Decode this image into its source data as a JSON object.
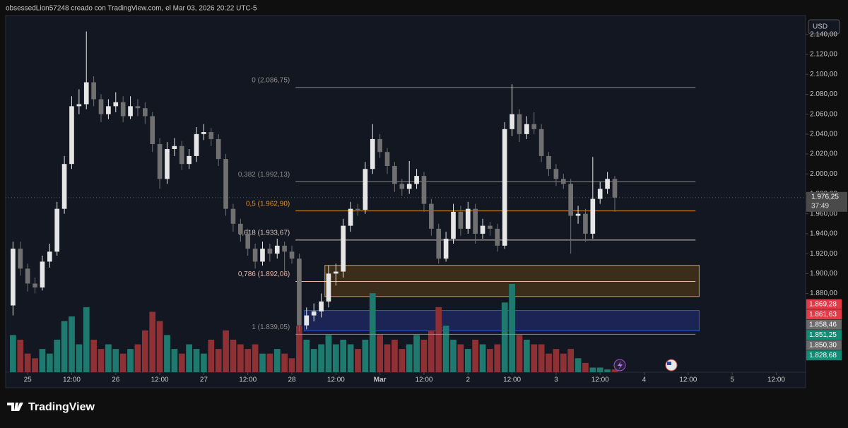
{
  "header": "obsessedLion57248 creado con TradingView.com, el Mar 03, 2026 20:22 UTC-5",
  "currency": "USD",
  "brand": "TradingView",
  "chart_data": {
    "type": "candlestick",
    "up_color": "#e6e6e6",
    "down_color": "#707070",
    "volume_up_color": "#1e7a6e",
    "volume_down_color": "#8f3035",
    "xlim": [
      -1,
      108
    ],
    "ylim": [
      1801,
      2159
    ],
    "xticks": [
      {
        "value": 2,
        "label": "25"
      },
      {
        "value": 8,
        "label": "12:00"
      },
      {
        "value": 14,
        "label": "26"
      },
      {
        "value": 20,
        "label": "12:00"
      },
      {
        "value": 26,
        "label": "27"
      },
      {
        "value": 32,
        "label": "12:00"
      },
      {
        "value": 38,
        "label": "28"
      },
      {
        "value": 44,
        "label": "12:00"
      },
      {
        "value": 50,
        "label": "Mar"
      },
      {
        "value": 56,
        "label": "12:00"
      },
      {
        "value": 62,
        "label": "2"
      },
      {
        "value": 68,
        "label": "12:00"
      },
      {
        "value": 74,
        "label": "3"
      },
      {
        "value": 80,
        "label": "12:00"
      },
      {
        "value": 86,
        "label": "4"
      },
      {
        "value": 92,
        "label": "12:00"
      },
      {
        "value": 98,
        "label": "5"
      },
      {
        "value": 104,
        "label": "12:00"
      }
    ],
    "yticks": [
      {
        "value": 2140,
        "label": "2.140,00"
      },
      {
        "value": 2120,
        "label": "2.120,00"
      },
      {
        "value": 2100,
        "label": "2.100,00"
      },
      {
        "value": 2080,
        "label": "2.080,00"
      },
      {
        "value": 2060,
        "label": "2.060,00"
      },
      {
        "value": 2040,
        "label": "2.040,00"
      },
      {
        "value": 2020,
        "label": "2.020,00"
      },
      {
        "value": 2000,
        "label": "2.000,00"
      },
      {
        "value": 1980,
        "label": "1.980,00"
      },
      {
        "value": 1960,
        "label": "1.960,00"
      },
      {
        "value": 1940,
        "label": "1.940,00"
      },
      {
        "value": 1920,
        "label": "1.920,00"
      },
      {
        "value": 1900,
        "label": "1.900,00"
      },
      {
        "value": 1880,
        "label": "1.880,00"
      }
    ],
    "open": [
      1868,
      1925,
      1905,
      1890,
      1886,
      1912,
      1922,
      1965,
      2010,
      2068,
      2070,
      2092,
      2075,
      2060,
      2068,
      2072,
      2058,
      2068,
      2066,
      2058,
      2030,
      1995,
      2025,
      2028,
      2010,
      2018,
      2040,
      2042,
      2035,
      2015,
      1965,
      1950,
      1940,
      1925,
      1912,
      1925,
      1920,
      1928,
      1922,
      1915,
      1848,
      1858,
      1862,
      1872,
      1900,
      1902,
      1948,
      1965,
      1964,
      2005,
      2035,
      2022,
      2008,
      1990,
      1985,
      1990,
      1998,
      1970,
      1945,
      1915,
      1935,
      1962,
      1945,
      1965,
      1940,
      1948,
      1945,
      1928,
      2045,
      2060,
      2040,
      2050,
      2045,
      2018,
      2005,
      1995,
      1990,
      1958,
      1960,
      1940,
      1975,
      1985,
      1995
    ],
    "high": [
      1932,
      1932,
      1910,
      1896,
      1918,
      1930,
      1972,
      2018,
      2078,
      2085,
      2143,
      2098,
      2080,
      2075,
      2082,
      2078,
      2078,
      2075,
      2072,
      2062,
      2036,
      2032,
      2036,
      2033,
      2025,
      2047,
      2050,
      2046,
      2040,
      2020,
      1970,
      1955,
      1945,
      1930,
      1932,
      1930,
      1935,
      1932,
      1928,
      1920,
      1866,
      1870,
      1880,
      1908,
      1910,
      1955,
      1972,
      1970,
      2012,
      2050,
      2040,
      2026,
      2012,
      1995,
      2013,
      2005,
      2002,
      1975,
      1950,
      1942,
      1970,
      1968,
      1972,
      1970,
      1955,
      1952,
      1950,
      2052,
      2090,
      2065,
      2058,
      2062,
      2050,
      2022,
      2010,
      2000,
      1995,
      1968,
      1965,
      2017,
      1992,
      2002,
      1998
    ],
    "low": [
      1858,
      1898,
      1882,
      1880,
      1883,
      1906,
      1918,
      1960,
      2005,
      2060,
      2065,
      2068,
      2052,
      2055,
      2062,
      2052,
      2055,
      2058,
      2050,
      2022,
      1985,
      1990,
      2018,
      2004,
      2005,
      2012,
      2034,
      2028,
      2008,
      1958,
      1942,
      1932,
      1918,
      1905,
      1908,
      1912,
      1915,
      1900,
      1910,
      1842,
      1844,
      1852,
      1856,
      1866,
      1888,
      1896,
      1942,
      1958,
      1960,
      2000,
      2016,
      2000,
      1982,
      1978,
      1980,
      1985,
      1962,
      1938,
      1910,
      1912,
      1930,
      1938,
      1940,
      1930,
      1935,
      1938,
      1922,
      1925,
      2038,
      2032,
      2035,
      2040,
      2012,
      1998,
      1988,
      1985,
      1920,
      1950,
      1932,
      1935,
      1970,
      1980,
      1962
    ],
    "close": [
      1925,
      1905,
      1890,
      1886,
      1912,
      1922,
      1965,
      2010,
      2068,
      2070,
      2092,
      2075,
      2060,
      2068,
      2072,
      2058,
      2068,
      2066,
      2058,
      2030,
      1995,
      2025,
      2028,
      2010,
      2018,
      2040,
      2042,
      2035,
      2015,
      1965,
      1950,
      1940,
      1925,
      1912,
      1925,
      1920,
      1928,
      1922,
      1915,
      1848,
      1858,
      1862,
      1872,
      1900,
      1902,
      1948,
      1965,
      1964,
      2005,
      2035,
      2022,
      2008,
      1990,
      1985,
      1990,
      1998,
      1970,
      1945,
      1915,
      1935,
      1962,
      1945,
      1965,
      1940,
      1948,
      1945,
      1928,
      2045,
      2060,
      2040,
      2050,
      2045,
      2018,
      2005,
      1995,
      1990,
      1958,
      1960,
      1940,
      1975,
      1985,
      1995,
      1976.25
    ],
    "volume": [
      40,
      35,
      20,
      15,
      25,
      20,
      35,
      55,
      60,
      30,
      70,
      35,
      25,
      30,
      25,
      20,
      25,
      30,
      45,
      65,
      55,
      40,
      25,
      20,
      30,
      25,
      20,
      35,
      25,
      45,
      35,
      30,
      25,
      30,
      20,
      20,
      25,
      20,
      15,
      50,
      35,
      25,
      30,
      40,
      30,
      35,
      30,
      25,
      35,
      85,
      40,
      30,
      35,
      25,
      30,
      40,
      35,
      45,
      70,
      50,
      35,
      30,
      25,
      35,
      30,
      25,
      30,
      75,
      95,
      40,
      35,
      30,
      30,
      20,
      25,
      20,
      25,
      15,
      10,
      5,
      5,
      3,
      3
    ],
    "fib_start": 38.5,
    "fib_end": 93,
    "fib_levels": [
      {
        "value": 2086.75,
        "label": "0 (2.086,75)",
        "color": "#8a8a8a"
      },
      {
        "value": 1992.13,
        "label": "0,382 (1.992,13)",
        "color": "#8a8a8a"
      },
      {
        "value": 1962.9,
        "label": "0,5 (1.962,90)",
        "color": "#e0902a"
      },
      {
        "value": 1933.67,
        "label": "0,618 (1.933,67)",
        "color": "#d8c8c0"
      },
      {
        "value": 1892.06,
        "label": "0,786 (1.892,06)",
        "color": "#e8b8a8"
      },
      {
        "value": 1839.05,
        "label": "1 (1.839,05)",
        "color": "#8a8a8a"
      }
    ],
    "zones": [
      {
        "x_start": 42.5,
        "x_end": 93.5,
        "top": 1908.3,
        "bottom": 1877,
        "fill": "#4a3518",
        "stroke": "#d99a2b"
      },
      {
        "x_start": 39.7,
        "x_end": 93.5,
        "top": 1863,
        "bottom": 1842.5,
        "fill": "#1f2a66",
        "stroke": "#3556c8"
      }
    ],
    "last_price": {
      "value": 1976.25,
      "label": "1.976,25",
      "countdown": "37:49"
    },
    "price_tags": [
      {
        "value": 1869.28,
        "label": "1.869,28",
        "color": "#e03b47"
      },
      {
        "value": 1861.63,
        "label": "1.861,63",
        "color": "#e03b47"
      },
      {
        "value": 1858.46,
        "label": "1.858,46",
        "color": "#6b6b6b"
      },
      {
        "value": 1851.25,
        "label": "1.851,25",
        "color": "#138a73"
      },
      {
        "value": 1850.3,
        "label": "1.850,30",
        "color": "#6b6b6b"
      },
      {
        "value": 1828.68,
        "label": "1.828,68",
        "color": "#138a73"
      }
    ]
  }
}
